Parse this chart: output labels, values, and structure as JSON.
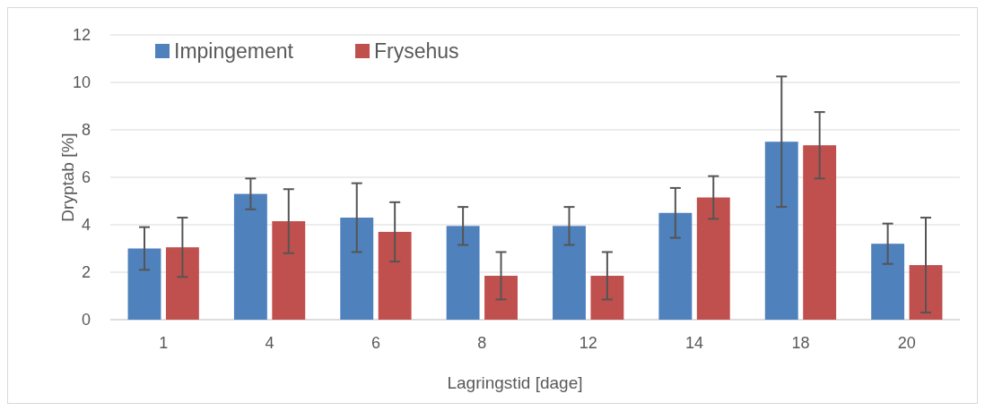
{
  "chart_data": {
    "type": "bar",
    "xlabel": "Lagringstid [dage]",
    "ylabel": "Dryptab [%]",
    "categories": [
      "1",
      "4",
      "6",
      "8",
      "12",
      "14",
      "18",
      "20"
    ],
    "series": [
      {
        "name": "Impingement",
        "color": "#4f81bd",
        "values": [
          3.0,
          5.3,
          4.3,
          3.95,
          3.95,
          4.5,
          7.5,
          3.2
        ],
        "errors": [
          0.9,
          0.65,
          1.45,
          0.8,
          0.8,
          1.05,
          2.75,
          0.85
        ]
      },
      {
        "name": "Frysehus",
        "color": "#c0504d",
        "values": [
          3.05,
          4.15,
          3.7,
          1.85,
          1.85,
          5.15,
          7.35,
          2.3
        ],
        "errors": [
          1.25,
          1.35,
          1.25,
          1.0,
          1.0,
          0.9,
          1.4,
          2.0
        ]
      }
    ],
    "ylim": [
      0,
      12
    ],
    "yticks": [
      0,
      2,
      4,
      6,
      8,
      10,
      12
    ],
    "grid": "y",
    "legend": "top left"
  }
}
